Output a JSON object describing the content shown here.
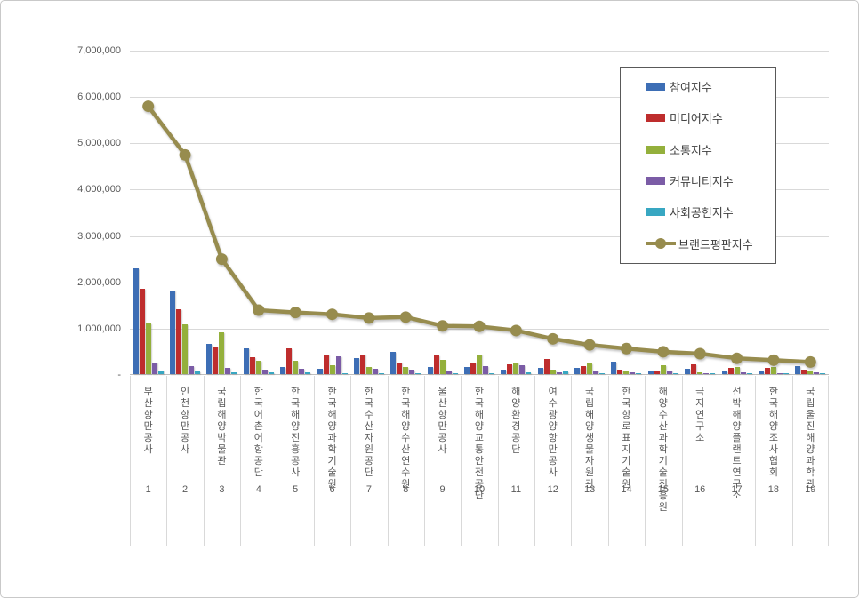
{
  "chart_data": {
    "type": "bar",
    "title": "",
    "xlabel": "",
    "ylabel": "",
    "ylim": [
      0,
      7000000
    ],
    "grid": true,
    "legend_position": "upper right",
    "y_ticks": [
      "7,000,000",
      "6,000,000",
      "5,000,000",
      "4,000,000",
      "3,000,000",
      "2,000,000",
      "1,000,000",
      "-"
    ],
    "categories": [
      "부산항만공사",
      "인천항만공사",
      "국립해양박물관",
      "한국어촌어항공단",
      "한국해양진흥공사",
      "한국해양과학기술원",
      "한국수산자원공단",
      "한국해양수산연수원",
      "울산항만공사",
      "한국해양교통안전공단",
      "해양환경공단",
      "여수광양항만공사",
      "국립해양생물자원관",
      "한국항로표지기술원",
      "해양수산과학기술진흥원",
      "극지연구소",
      "선박해양플랜트연구소",
      "한국해양조사협회",
      "국립울진해양과학관"
    ],
    "rank_labels": [
      "1",
      "2",
      "3",
      "4",
      "5",
      "6",
      "7",
      "8",
      "9",
      "10",
      "11",
      "12",
      "13",
      "14",
      "15",
      "16",
      "17",
      "18",
      "19"
    ],
    "series": [
      {
        "name": "참여지수",
        "color": "#3d6eb5",
        "values": [
          2280000,
          1800000,
          660000,
          550000,
          160000,
          110000,
          350000,
          470000,
          150000,
          150000,
          100000,
          130000,
          130000,
          260000,
          60000,
          120000,
          60000,
          50000,
          170000
        ]
      },
      {
        "name": "미디어지수",
        "color": "#be2d2d",
        "values": [
          1850000,
          1400000,
          590000,
          360000,
          550000,
          430000,
          420000,
          250000,
          400000,
          240000,
          220000,
          320000,
          170000,
          100000,
          70000,
          210000,
          130000,
          130000,
          100000
        ]
      },
      {
        "name": "소통지수",
        "color": "#94b03c",
        "values": [
          1100000,
          1080000,
          900000,
          280000,
          280000,
          190000,
          160000,
          160000,
          310000,
          430000,
          240000,
          100000,
          230000,
          60000,
          190000,
          40000,
          150000,
          150000,
          60000
        ]
      },
      {
        "name": "커뮤니티지수",
        "color": "#7b5ca6",
        "values": [
          250000,
          180000,
          140000,
          100000,
          110000,
          390000,
          120000,
          100000,
          50000,
          170000,
          200000,
          40000,
          70000,
          30000,
          80000,
          20000,
          40000,
          20000,
          30000
        ]
      },
      {
        "name": "사회공헌지수",
        "color": "#38a7c2",
        "values": [
          70000,
          50000,
          30000,
          30000,
          30000,
          20000,
          20000,
          20000,
          20000,
          20000,
          30000,
          50000,
          20000,
          10000,
          20000,
          10000,
          10000,
          10000,
          20000
        ]
      }
    ],
    "line_series": {
      "name": "브랜드평판지수",
      "color": "#978c4e",
      "values": [
        5800000,
        4750000,
        2500000,
        1400000,
        1350000,
        1310000,
        1230000,
        1250000,
        1060000,
        1050000,
        960000,
        780000,
        650000,
        570000,
        500000,
        460000,
        360000,
        320000,
        280000
      ]
    }
  },
  "colors": {
    "grid": "#d9d9d9",
    "axis_line": "#bfbfbf",
    "tick_text": "#595959",
    "legend_border": "#595959",
    "legend_text": "#404040"
  }
}
